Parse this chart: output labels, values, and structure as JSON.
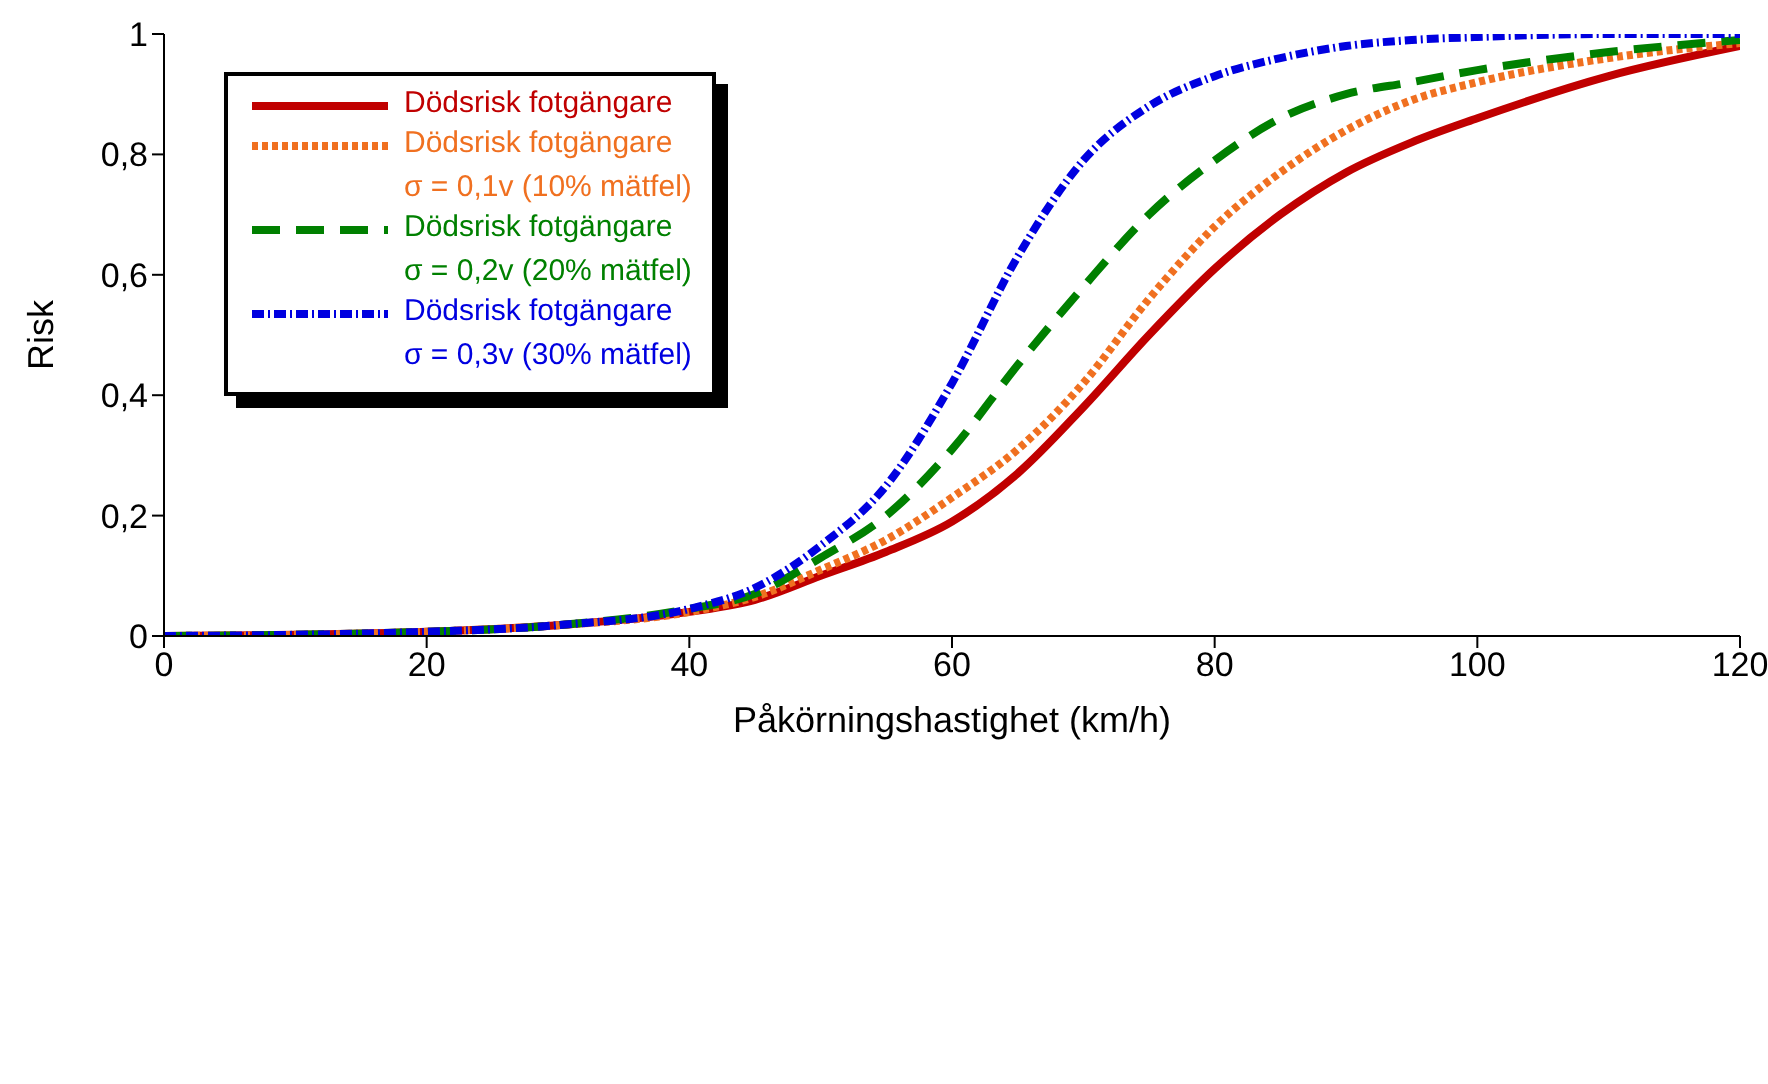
{
  "chart_data": {
    "type": "line",
    "xlabel": "Påkörningshastighet (km/h)",
    "ylabel": "Risk",
    "xlim": [
      0,
      120
    ],
    "xticks": [
      0,
      20,
      40,
      60,
      80,
      100,
      120
    ],
    "ylim": [
      0,
      1
    ],
    "yticks": [
      0,
      {
        "value": 0.2,
        "label": "0,2"
      },
      {
        "value": 0.4,
        "label": "0,4"
      },
      {
        "value": 0.6,
        "label": "0,6"
      },
      {
        "value": 0.8,
        "label": "0,8"
      },
      1
    ],
    "legend": "top left",
    "marker": "none",
    "x": [
      0,
      10,
      20,
      30,
      40,
      45,
      50,
      55,
      60,
      65,
      70,
      75,
      80,
      85,
      90,
      95,
      100,
      110,
      120
    ],
    "series": [
      {
        "name": "Dödsrisk fotgängare",
        "color": "#c00000",
        "line_style": "solid",
        "values": [
          0,
          0.002,
          0.007,
          0.018,
          0.04,
          0.06,
          0.1,
          0.14,
          0.19,
          0.27,
          0.38,
          0.5,
          0.61,
          0.7,
          0.77,
          0.82,
          0.86,
          0.93,
          0.98
        ]
      },
      {
        "name": "Dödsrisk fotgängare\nσ = 0,1v (10% mätfel)",
        "color": "#f07020",
        "line_style": "dotted",
        "values": [
          0,
          0.002,
          0.007,
          0.018,
          0.04,
          0.065,
          0.11,
          0.16,
          0.23,
          0.31,
          0.42,
          0.56,
          0.68,
          0.77,
          0.84,
          0.89,
          0.92,
          0.96,
          0.985
        ]
      },
      {
        "name": "Dödsrisk fotgängare\nσ = 0,2v (20% mätfel)",
        "color": "#008000",
        "line_style": "dashed",
        "values": [
          0,
          0.002,
          0.007,
          0.018,
          0.045,
          0.07,
          0.13,
          0.2,
          0.31,
          0.45,
          0.58,
          0.7,
          0.79,
          0.86,
          0.9,
          0.92,
          0.94,
          0.97,
          0.99
        ]
      },
      {
        "name": "Dödsrisk fotgängare\nσ = 0,3v (30% mätfel)",
        "color": "#0000e0",
        "line_style": "dashdot",
        "values": [
          0,
          0.002,
          0.007,
          0.018,
          0.045,
          0.08,
          0.15,
          0.25,
          0.42,
          0.63,
          0.79,
          0.88,
          0.93,
          0.96,
          0.98,
          0.99,
          0.995,
          1,
          1
        ]
      }
    ]
  }
}
